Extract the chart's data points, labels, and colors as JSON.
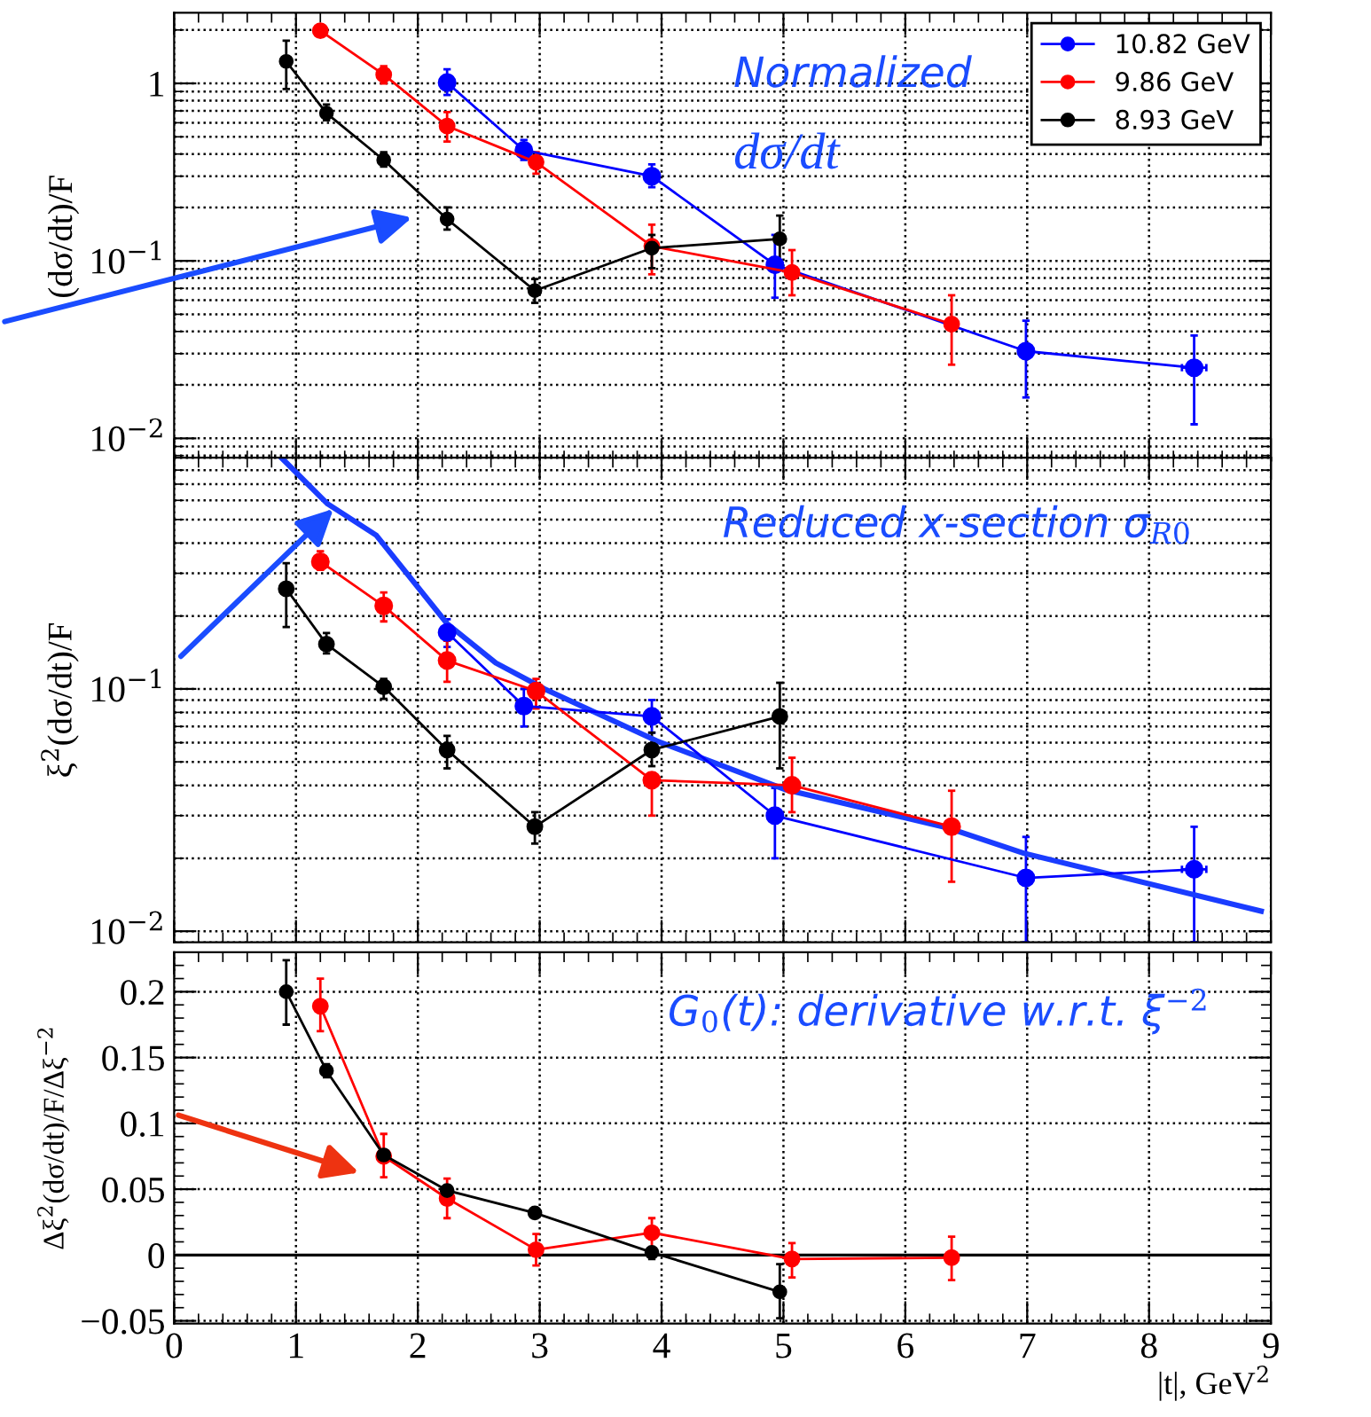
{
  "chart_data": [
    {
      "type": "line",
      "ylabel": "(dσ/dt)/F",
      "log": "y",
      "grid": true,
      "legend": "top right",
      "marker": "circle",
      "tick_labels": "y",
      "xlim": [
        0,
        9
      ],
      "xticks": [
        0,
        1,
        2,
        3,
        4,
        5,
        6,
        7,
        8,
        9
      ],
      "ylim": [
        0.0075,
        2.5
      ],
      "yticks": [
        {
          "value": 0.01,
          "label": "10$^{−2}$"
        },
        {
          "value": 0.1,
          "label": "10$^{−1}$"
        },
        1
      ],
      "annotations": [
        "Normalized",
        "dσ/dt"
      ],
      "series": [
        {
          "name": "10.82 GeV",
          "color": "#0000ff",
          "x": [
            2.24,
            2.87,
            3.92,
            4.93,
            6.99,
            8.37
          ],
          "values": [
            1.01,
            0.42,
            0.3,
            0.095,
            0.031,
            0.025
          ],
          "errors": [
            [
              0.86,
              1.2
            ],
            [
              0.37,
              0.48
            ],
            [
              0.26,
              0.35
            ],
            [
              0.062,
              0.14
            ],
            [
              0.017,
              0.046
            ],
            [
              0.012,
              0.038
            ]
          ],
          "xerrors": [
            null,
            null,
            null,
            null,
            null,
            0.1
          ]
        },
        {
          "name": "9.86 GeV",
          "color": "#ff0000",
          "x": [
            1.2,
            1.72,
            2.24,
            2.97,
            3.92,
            5.07,
            6.38
          ],
          "values": [
            1.98,
            1.12,
            0.575,
            0.36,
            0.121,
            0.086,
            0.044
          ],
          "errors": [
            [
              1.85,
              2.1
            ],
            [
              1.0,
              1.25
            ],
            [
              0.47,
              0.69
            ],
            [
              0.31,
              0.41
            ],
            [
              0.084,
              0.16
            ],
            [
              0.064,
              0.115
            ],
            [
              0.026,
              0.064
            ]
          ]
        },
        {
          "name": "8.93 GeV",
          "color": "#000000",
          "x": [
            0.92,
            1.25,
            1.72,
            2.24,
            2.96,
            3.92,
            4.97
          ],
          "values": [
            1.33,
            0.68,
            0.37,
            0.172,
            0.068,
            0.118,
            0.133
          ],
          "errors": [
            [
              0.93,
              1.74
            ],
            [
              0.62,
              0.76
            ],
            [
              0.34,
              0.41
            ],
            [
              0.15,
              0.2
            ],
            [
              0.058,
              0.079
            ],
            [
              0.091,
              0.14
            ],
            [
              0.091,
              0.18
            ]
          ]
        }
      ]
    },
    {
      "type": "line",
      "ylabel": "ξ$^{2}$(dσ/dt)/F",
      "log": "y",
      "grid": true,
      "marker": "circle",
      "tick_labels": "y",
      "xlim": [
        0,
        9
      ],
      "xticks": [
        0,
        1,
        2,
        3,
        4,
        5,
        6,
        7,
        8,
        9
      ],
      "ylim": [
        0.009,
        0.9
      ],
      "yticks": [
        {
          "value": 0.01,
          "label": "10$^{−2}$"
        },
        {
          "value": 0.1,
          "label": "10$^{−1}$"
        }
      ],
      "annotations": [
        "Reduced x-section σ$_{R0}$"
      ],
      "series": [
        {
          "color": "#0000ff",
          "x": [
            2.24,
            2.87,
            3.92,
            4.93,
            6.99,
            8.37
          ],
          "values": [
            0.171,
            0.085,
            0.077,
            0.03,
            0.0166,
            0.018
          ],
          "errors": [
            [
              0.149,
              0.194
            ],
            [
              0.07,
              0.1
            ],
            [
              0.066,
              0.09
            ],
            [
              0.02,
              0.039
            ],
            [
              0.009,
              0.0245
            ],
            [
              0.009,
              0.027
            ]
          ],
          "xerrors": [
            null,
            null,
            null,
            null,
            null,
            0.1
          ]
        },
        {
          "color": "#ff0000",
          "x": [
            1.2,
            1.72,
            2.24,
            2.97,
            3.92,
            5.07,
            6.38
          ],
          "values": [
            0.335,
            0.22,
            0.131,
            0.098,
            0.042,
            0.04,
            0.027
          ],
          "errors": [
            [
              0.31,
              0.37
            ],
            [
              0.19,
              0.25
            ],
            [
              0.107,
              0.158
            ],
            [
              0.083,
              0.11
            ],
            [
              0.03,
              0.042
            ],
            [
              0.031,
              0.052
            ],
            [
              0.016,
              0.038
            ]
          ]
        },
        {
          "color": "#000000",
          "x": [
            0.92,
            1.25,
            1.72,
            2.24,
            2.96,
            3.92,
            4.97
          ],
          "values": [
            0.259,
            0.153,
            0.102,
            0.056,
            0.027,
            0.056,
            0.077
          ],
          "errors": [
            [
              0.18,
              0.33
            ],
            [
              0.14,
              0.17
            ],
            [
              0.091,
              0.11
            ],
            [
              0.047,
              0.064
            ],
            [
              0.023,
              0.031
            ],
            [
              0.048,
              0.066
            ],
            [
              0.047,
              0.106
            ]
          ]
        },
        {
          "type": "line",
          "marker": "none",
          "color": "#1a3cff",
          "x": [
            0.88,
            1.26,
            1.66,
            2.24,
            2.64,
            3.04,
            3.96,
            5.01,
            6.36,
            6.97,
            8.92
          ],
          "values": [
            0.9,
            0.58,
            0.43,
            0.186,
            0.128,
            0.1,
            0.061,
            0.0385,
            0.0266,
            0.021,
            0.0121
          ]
        }
      ]
    },
    {
      "type": "line",
      "ylabel": "Δξ$^{2}$(dσ/dt)/F/Δξ$^{−2}$",
      "xlabel": "|t|, GeV$^{2}$",
      "grid": true,
      "marker": "circle",
      "xlim": [
        0,
        9
      ],
      "xticks": [
        0,
        1,
        2,
        3,
        4,
        5,
        6,
        7,
        8,
        9
      ],
      "ylim": [
        -0.052,
        0.23
      ],
      "yticks": [
        {
          "value": -0.05,
          "label": "−0.05"
        },
        0,
        0.05,
        0.1,
        0.15,
        0.2
      ],
      "annotations": [
        "G$_{0}$(t): derivative w.r.t. ξ$^{−2}$"
      ],
      "ref_lines": [
        {
          "axis": "y",
          "value": 0,
          "color": "#000000"
        }
      ],
      "series": [
        {
          "color": "#ff0000",
          "x": [
            1.2,
            1.72,
            2.24,
            2.97,
            3.92,
            5.07,
            6.38
          ],
          "values": [
            0.189,
            0.075,
            0.043,
            0.004,
            0.017,
            -0.003,
            -0.002
          ],
          "errors": [
            [
              0.17,
              0.21
            ],
            [
              0.059,
              0.092
            ],
            [
              0.028,
              0.058
            ],
            [
              -0.008,
              0.016
            ],
            [
              0.004,
              0.028
            ],
            [
              -0.017,
              0.009
            ],
            [
              -0.019,
              0.014
            ]
          ]
        },
        {
          "color": "#000000",
          "x": [
            0.92,
            1.25,
            1.72,
            2.24,
            2.96,
            3.92,
            4.97
          ],
          "values": [
            0.2,
            0.14,
            0.076,
            0.049,
            0.032,
            0.002,
            -0.028
          ],
          "errors": [
            [
              0.175,
              0.224
            ],
            [
              0.135,
              0.145
            ],
            [
              0.073,
              0.079
            ],
            [
              0.046,
              0.053
            ],
            [
              0.03,
              0.034
            ],
            [
              -0.003,
              0.005
            ],
            [
              -0.048,
              -0.007
            ]
          ]
        }
      ]
    }
  ]
}
